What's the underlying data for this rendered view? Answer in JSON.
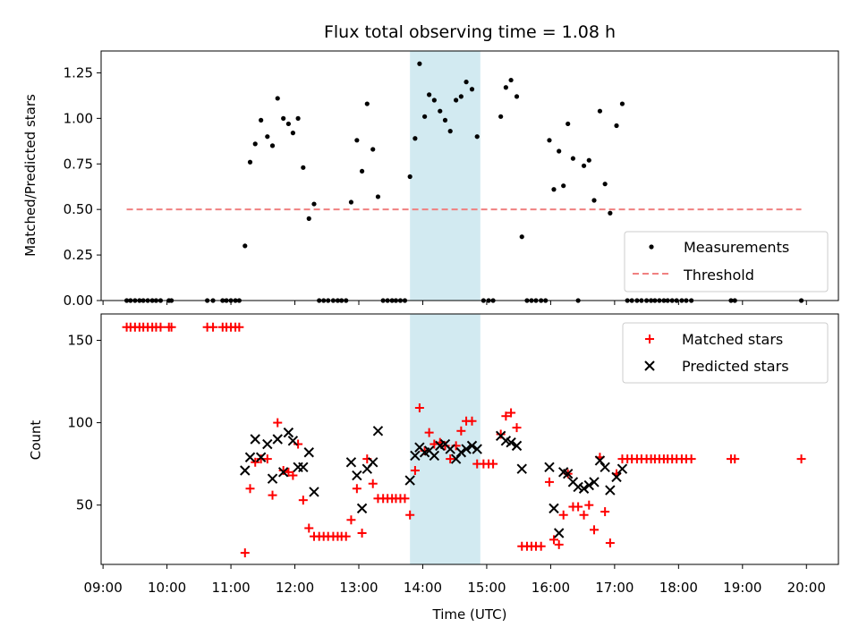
{
  "chart_data": {
    "type": "scatter",
    "title": "Flux total observing time = 1.08 h",
    "xlabel": "Time (UTC)",
    "x_unit": "hours UTC",
    "xlim": [
      8.97,
      20.5
    ],
    "x_ticks": [
      {
        "value": 9,
        "label": "09:00"
      },
      {
        "value": 10,
        "label": "10:00"
      },
      {
        "value": 11,
        "label": "11:00"
      },
      {
        "value": 12,
        "label": "12:00"
      },
      {
        "value": 13,
        "label": "13:00"
      },
      {
        "value": 14,
        "label": "14:00"
      },
      {
        "value": 15,
        "label": "15:00"
      },
      {
        "value": 16,
        "label": "16:00"
      },
      {
        "value": 17,
        "label": "17:00"
      },
      {
        "value": 18,
        "label": "18:00"
      },
      {
        "value": 19,
        "label": "19:00"
      },
      {
        "value": 20,
        "label": "20:00"
      }
    ],
    "highlight_span": [
      13.8,
      14.9
    ],
    "highlight_color": "#add8e6",
    "colors": {
      "matched": "#ff0000",
      "predicted": "#000000",
      "measurements": "#000000",
      "threshold": "#f08080"
    },
    "top": {
      "ylabel": "Matched/Predicted stars",
      "ylim": [
        0,
        1.37
      ],
      "y_ticks": [
        "0.00",
        "0.25",
        "0.50",
        "0.75",
        "1.00",
        "1.25"
      ],
      "legend": [
        "Measurements",
        "Threshold"
      ],
      "threshold": {
        "x": [
          9.37,
          19.92
        ],
        "y": 0.5
      },
      "measurements": [
        [
          9.37,
          0
        ],
        [
          9.43,
          0
        ],
        [
          9.5,
          0
        ],
        [
          9.57,
          0
        ],
        [
          9.63,
          0
        ],
        [
          9.7,
          0
        ],
        [
          9.77,
          0
        ],
        [
          9.83,
          0
        ],
        [
          9.9,
          0
        ],
        [
          10.03,
          0
        ],
        [
          10.07,
          0
        ],
        [
          10.63,
          0
        ],
        [
          10.72,
          0
        ],
        [
          10.87,
          0
        ],
        [
          10.93,
          0
        ],
        [
          11.0,
          0
        ],
        [
          11.07,
          0
        ],
        [
          11.13,
          0
        ],
        [
          11.22,
          0.3
        ],
        [
          11.3,
          0.76
        ],
        [
          11.38,
          0.86
        ],
        [
          11.47,
          0.99
        ],
        [
          11.57,
          0.9
        ],
        [
          11.65,
          0.85
        ],
        [
          11.73,
          1.11
        ],
        [
          11.82,
          1.0
        ],
        [
          11.9,
          0.97
        ],
        [
          11.97,
          0.92
        ],
        [
          12.05,
          1.0
        ],
        [
          12.13,
          0.73
        ],
        [
          12.22,
          0.45
        ],
        [
          12.3,
          0.53
        ],
        [
          12.38,
          0
        ],
        [
          12.45,
          0
        ],
        [
          12.52,
          0
        ],
        [
          12.6,
          0
        ],
        [
          12.67,
          0
        ],
        [
          12.73,
          0
        ],
        [
          12.8,
          0
        ],
        [
          12.88,
          0.54
        ],
        [
          12.97,
          0.88
        ],
        [
          13.05,
          0.71
        ],
        [
          13.13,
          1.08
        ],
        [
          13.22,
          0.83
        ],
        [
          13.3,
          0.57
        ],
        [
          13.38,
          0
        ],
        [
          13.45,
          0
        ],
        [
          13.52,
          0
        ],
        [
          13.58,
          0
        ],
        [
          13.65,
          0
        ],
        [
          13.72,
          0
        ],
        [
          13.8,
          0.68
        ],
        [
          13.88,
          0.89
        ],
        [
          13.95,
          1.3
        ],
        [
          14.03,
          1.01
        ],
        [
          14.1,
          1.13
        ],
        [
          14.18,
          1.1
        ],
        [
          14.27,
          1.04
        ],
        [
          14.35,
          0.99
        ],
        [
          14.43,
          0.93
        ],
        [
          14.52,
          1.1
        ],
        [
          14.6,
          1.12
        ],
        [
          14.68,
          1.2
        ],
        [
          14.77,
          1.16
        ],
        [
          14.85,
          0.9
        ],
        [
          14.95,
          0
        ],
        [
          15.03,
          0
        ],
        [
          15.1,
          0
        ],
        [
          15.22,
          1.01
        ],
        [
          15.3,
          1.17
        ],
        [
          15.38,
          1.21
        ],
        [
          15.47,
          1.12
        ],
        [
          15.55,
          0.35
        ],
        [
          15.63,
          0
        ],
        [
          15.7,
          0
        ],
        [
          15.77,
          0
        ],
        [
          15.85,
          0
        ],
        [
          15.92,
          0
        ],
        [
          15.98,
          0.88
        ],
        [
          16.05,
          0.61
        ],
        [
          16.13,
          0.82
        ],
        [
          16.2,
          0.63
        ],
        [
          16.27,
          0.97
        ],
        [
          16.35,
          0.78
        ],
        [
          16.43,
          0
        ],
        [
          16.52,
          0.74
        ],
        [
          16.6,
          0.77
        ],
        [
          16.68,
          0.55
        ],
        [
          16.77,
          1.04
        ],
        [
          16.85,
          0.64
        ],
        [
          16.93,
          0.48
        ],
        [
          17.03,
          0.96
        ],
        [
          17.12,
          1.08
        ],
        [
          17.2,
          0
        ],
        [
          17.27,
          0
        ],
        [
          17.35,
          0
        ],
        [
          17.42,
          0
        ],
        [
          17.5,
          0
        ],
        [
          17.57,
          0
        ],
        [
          17.63,
          0
        ],
        [
          17.7,
          0
        ],
        [
          17.77,
          0
        ],
        [
          17.83,
          0
        ],
        [
          17.9,
          0
        ],
        [
          17.97,
          0
        ],
        [
          18.05,
          0
        ],
        [
          18.12,
          0
        ],
        [
          18.2,
          0
        ],
        [
          18.82,
          0
        ],
        [
          18.88,
          0
        ],
        [
          19.92,
          0
        ]
      ]
    },
    "bottom": {
      "ylabel": "Count",
      "ylim": [
        14,
        166
      ],
      "y_ticks": [
        "50",
        "100",
        "150"
      ],
      "legend": [
        "Matched stars",
        "Predicted stars"
      ],
      "matched": [
        [
          9.37,
          158
        ],
        [
          9.43,
          158
        ],
        [
          9.5,
          158
        ],
        [
          9.57,
          158
        ],
        [
          9.63,
          158
        ],
        [
          9.7,
          158
        ],
        [
          9.77,
          158
        ],
        [
          9.83,
          158
        ],
        [
          9.9,
          158
        ],
        [
          10.03,
          158
        ],
        [
          10.07,
          158
        ],
        [
          10.63,
          158
        ],
        [
          10.72,
          158
        ],
        [
          10.87,
          158
        ],
        [
          10.93,
          158
        ],
        [
          11.0,
          158
        ],
        [
          11.07,
          158
        ],
        [
          11.13,
          158
        ],
        [
          11.22,
          21
        ],
        [
          11.3,
          60
        ],
        [
          11.38,
          76
        ],
        [
          11.47,
          78
        ],
        [
          11.57,
          78
        ],
        [
          11.65,
          56
        ],
        [
          11.73,
          100
        ],
        [
          11.82,
          71
        ],
        [
          11.9,
          70
        ],
        [
          11.97,
          68
        ],
        [
          12.05,
          87
        ],
        [
          12.13,
          53
        ],
        [
          12.22,
          36
        ],
        [
          12.3,
          31
        ],
        [
          12.38,
          31
        ],
        [
          12.45,
          31
        ],
        [
          12.52,
          31
        ],
        [
          12.6,
          31
        ],
        [
          12.67,
          31
        ],
        [
          12.73,
          31
        ],
        [
          12.8,
          31
        ],
        [
          12.88,
          41
        ],
        [
          12.97,
          60
        ],
        [
          13.05,
          33
        ],
        [
          13.13,
          78
        ],
        [
          13.22,
          63
        ],
        [
          13.3,
          54
        ],
        [
          13.38,
          54
        ],
        [
          13.45,
          54
        ],
        [
          13.52,
          54
        ],
        [
          13.58,
          54
        ],
        [
          13.65,
          54
        ],
        [
          13.72,
          54
        ],
        [
          13.8,
          44
        ],
        [
          13.88,
          71
        ],
        [
          13.95,
          109
        ],
        [
          14.03,
          83
        ],
        [
          14.1,
          94
        ],
        [
          14.18,
          87
        ],
        [
          14.27,
          88
        ],
        [
          14.35,
          86
        ],
        [
          14.43,
          78
        ],
        [
          14.52,
          86
        ],
        [
          14.6,
          95
        ],
        [
          14.68,
          101
        ],
        [
          14.77,
          101
        ],
        [
          14.85,
          75
        ],
        [
          14.95,
          75
        ],
        [
          15.03,
          75
        ],
        [
          15.1,
          75
        ],
        [
          15.22,
          93
        ],
        [
          15.3,
          104
        ],
        [
          15.38,
          106
        ],
        [
          15.47,
          97
        ],
        [
          15.55,
          25
        ],
        [
          15.63,
          25
        ],
        [
          15.7,
          25
        ],
        [
          15.77,
          25
        ],
        [
          15.85,
          25
        ],
        [
          15.98,
          64
        ],
        [
          16.05,
          29
        ],
        [
          16.13,
          26
        ],
        [
          16.2,
          44
        ],
        [
          16.27,
          69
        ],
        [
          16.35,
          49
        ],
        [
          16.43,
          49
        ],
        [
          16.52,
          44
        ],
        [
          16.6,
          50
        ],
        [
          16.68,
          35
        ],
        [
          16.77,
          79
        ],
        [
          16.85,
          46
        ],
        [
          16.93,
          27
        ],
        [
          17.03,
          69
        ],
        [
          17.12,
          78
        ],
        [
          17.2,
          78
        ],
        [
          17.27,
          78
        ],
        [
          17.35,
          78
        ],
        [
          17.42,
          78
        ],
        [
          17.5,
          78
        ],
        [
          17.57,
          78
        ],
        [
          17.63,
          78
        ],
        [
          17.7,
          78
        ],
        [
          17.77,
          78
        ],
        [
          17.83,
          78
        ],
        [
          17.9,
          78
        ],
        [
          17.97,
          78
        ],
        [
          18.05,
          78
        ],
        [
          18.12,
          78
        ],
        [
          18.2,
          78
        ],
        [
          18.82,
          78
        ],
        [
          18.88,
          78
        ],
        [
          19.92,
          78
        ]
      ],
      "predicted": [
        [
          11.22,
          71
        ],
        [
          11.3,
          79
        ],
        [
          11.38,
          90
        ],
        [
          11.47,
          79
        ],
        [
          11.57,
          87
        ],
        [
          11.65,
          66
        ],
        [
          11.73,
          90
        ],
        [
          11.82,
          70
        ],
        [
          11.9,
          94
        ],
        [
          11.97,
          89
        ],
        [
          12.05,
          73
        ],
        [
          12.13,
          73
        ],
        [
          12.22,
          82
        ],
        [
          12.3,
          58
        ],
        [
          12.88,
          76
        ],
        [
          12.97,
          68
        ],
        [
          13.05,
          48
        ],
        [
          13.13,
          72
        ],
        [
          13.22,
          76
        ],
        [
          13.3,
          95
        ],
        [
          13.8,
          65
        ],
        [
          13.88,
          80
        ],
        [
          13.95,
          85
        ],
        [
          14.03,
          82
        ],
        [
          14.1,
          83
        ],
        [
          14.18,
          80
        ],
        [
          14.27,
          86
        ],
        [
          14.35,
          87
        ],
        [
          14.43,
          84
        ],
        [
          14.52,
          78
        ],
        [
          14.6,
          82
        ],
        [
          14.68,
          84
        ],
        [
          14.77,
          86
        ],
        [
          14.85,
          84
        ],
        [
          15.22,
          92
        ],
        [
          15.3,
          89
        ],
        [
          15.38,
          88
        ],
        [
          15.47,
          86
        ],
        [
          15.55,
          72
        ],
        [
          15.98,
          73
        ],
        [
          16.05,
          48
        ],
        [
          16.13,
          33
        ],
        [
          16.2,
          70
        ],
        [
          16.27,
          69
        ],
        [
          16.35,
          64
        ],
        [
          16.43,
          61
        ],
        [
          16.52,
          60
        ],
        [
          16.6,
          62
        ],
        [
          16.68,
          64
        ],
        [
          16.77,
          77
        ],
        [
          16.85,
          73
        ],
        [
          16.93,
          59
        ],
        [
          17.03,
          67
        ],
        [
          17.12,
          72
        ]
      ]
    }
  }
}
